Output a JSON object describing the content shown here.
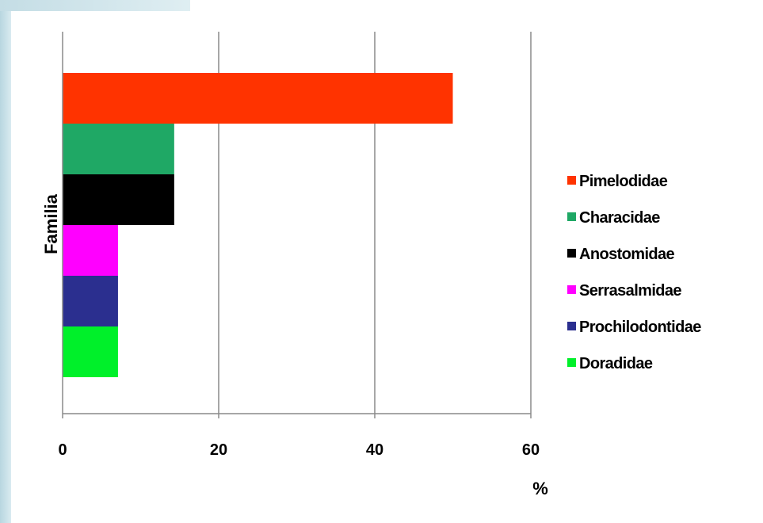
{
  "chart_data": {
    "type": "bar",
    "orientation": "horizontal",
    "ylabel": "Familia",
    "xlabel": "%",
    "xlim": [
      0,
      60
    ],
    "xticks": [
      0,
      20,
      40,
      60
    ],
    "grid": "vertical",
    "legend_position": "right",
    "categories": [
      "Pimelodidae",
      "Characidae",
      "Anostomidae",
      "Serrasalmidae",
      "Prochilodontidae",
      "Doradidae"
    ],
    "values": [
      50,
      14.3,
      14.3,
      7.1,
      7.1,
      7.1
    ],
    "colors": [
      "#ff3300",
      "#1fa865",
      "#000000",
      "#ff00ff",
      "#2b2f8f",
      "#00f02a"
    ]
  }
}
